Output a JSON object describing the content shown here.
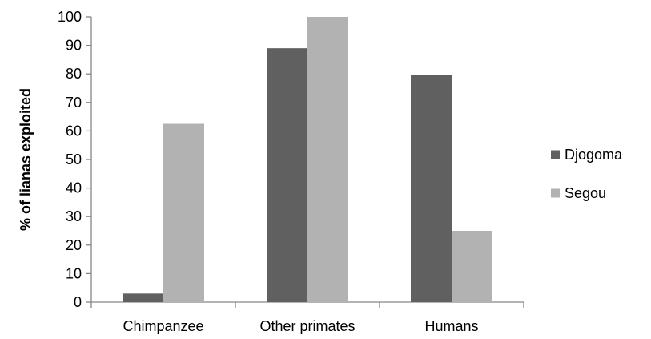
{
  "chart_data": {
    "type": "bar",
    "categories": [
      "Chimpanzee",
      "Other primates",
      "Humans"
    ],
    "series": [
      {
        "name": "Djogoma",
        "values": [
          3,
          89,
          79.5
        ],
        "color": "#606060"
      },
      {
        "name": "Segou",
        "values": [
          62.5,
          100,
          25
        ],
        "color": "#b2b2b2"
      }
    ],
    "ylabel": "% of lianas exploited",
    "xlabel": "",
    "ylim": [
      0,
      100
    ],
    "yticks": [
      0,
      10,
      20,
      30,
      40,
      50,
      60,
      70,
      80,
      90,
      100
    ],
    "grid": false,
    "legend_position": "right"
  }
}
